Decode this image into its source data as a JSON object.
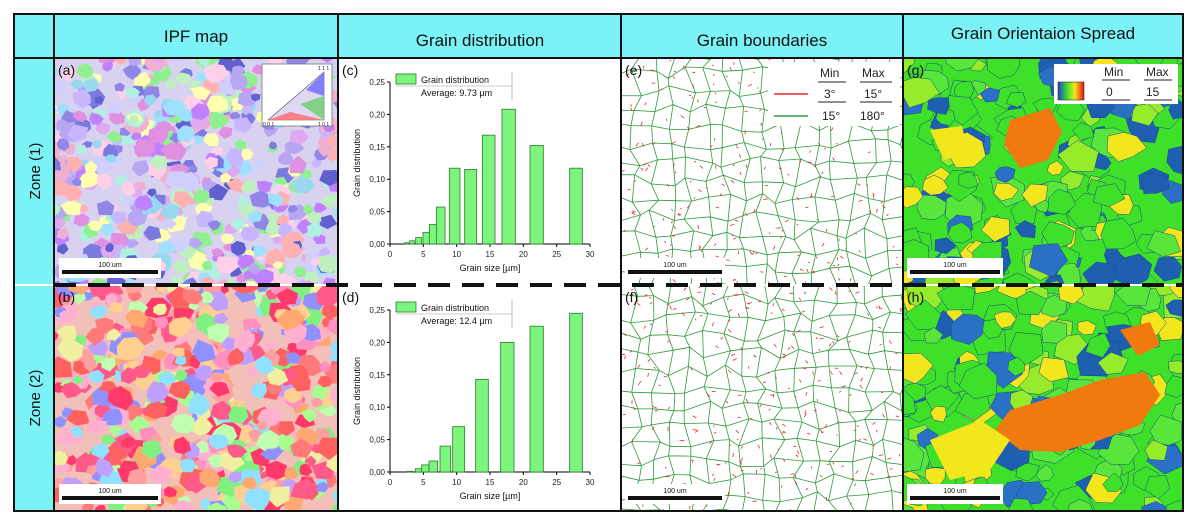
{
  "headers": {
    "ipf": "IPF map",
    "grain_distribution": "Grain distribution",
    "grain_boundaries": "Grain boundaries",
    "gos": "Grain Orientaion Spread"
  },
  "zones": [
    "Zone (1)",
    "Zone (2)"
  ],
  "panel_labels": [
    "(a)",
    "(b)",
    "(c)",
    "(d)",
    "(e)",
    "(f)",
    "(g)",
    "(h)"
  ],
  "scale_bar": "100 um",
  "ipf_key": {
    "top": "1 1 1",
    "left": "0 0 1",
    "right": "1 0 1"
  },
  "boundary_legend": {
    "min_header": "Min",
    "max_header": "Max",
    "rows": [
      {
        "min": "3°",
        "max": "15°",
        "color": "#e8262a"
      },
      {
        "min": "15°",
        "max": "180°",
        "color": "#2e9a3a"
      }
    ]
  },
  "gos_legend": {
    "min_header": "Min",
    "max_header": "Max",
    "min": "0",
    "max": "15"
  },
  "colors": {
    "header_bg": "#7af2f6",
    "bar_fill": "#7cf57c",
    "bar_stroke": "#2d7a2d",
    "gos_blue": "#1f5fb0",
    "gos_green": "#3ee02a",
    "gos_yellow": "#f2e61c",
    "gos_orange": "#f07a10"
  },
  "chart_data": [
    {
      "type": "bar",
      "panel": "(c)",
      "legend_label": "Grain distribution",
      "average": "Average: 9.73 µm",
      "xlabel": "Grain size [µm]",
      "ylabel": "Grain distribution",
      "xlim": [
        0,
        30
      ],
      "ylim": [
        0,
        0.25
      ],
      "xticks": [
        "0",
        "5",
        "10",
        "15",
        "20",
        "25",
        "30"
      ],
      "yticks": [
        "0,00",
        "0,05",
        "0,10",
        "0,15",
        "0,20",
        "0,25"
      ],
      "x": [
        2.5,
        3.3,
        4.3,
        5.5,
        6.5,
        7.6,
        9.7,
        12.1,
        14.8,
        17.8,
        22.0,
        27.9
      ],
      "widths": [
        0.6,
        0.7,
        0.9,
        1.1,
        1.2,
        1.3,
        1.6,
        1.8,
        1.9,
        2.0,
        2.0,
        1.9
      ],
      "values": [
        0.002,
        0.005,
        0.01,
        0.018,
        0.03,
        0.057,
        0.117,
        0.115,
        0.168,
        0.208,
        0.152,
        0.117
      ]
    },
    {
      "type": "bar",
      "panel": "(d)",
      "legend_label": "Grain distribution",
      "average": "Average: 12.4 µm",
      "xlabel": "Grain size [µm]",
      "ylabel": "Grain distribution",
      "xlim": [
        0,
        30
      ],
      "ylim": [
        0,
        0.25
      ],
      "xticks": [
        "0",
        "5",
        "10",
        "15",
        "20",
        "25",
        "30"
      ],
      "yticks": [
        "0,00",
        "0,05",
        "0,10",
        "0,15",
        "0,20",
        "0,25"
      ],
      "x": [
        3.0,
        4.3,
        5.3,
        6.5,
        8.3,
        10.3,
        13.8,
        17.6,
        22.0,
        27.9
      ],
      "widths": [
        0.8,
        1.0,
        1.1,
        1.3,
        1.6,
        1.8,
        1.9,
        2.0,
        2.0,
        1.9
      ],
      "values": [
        0.001,
        0.005,
        0.011,
        0.017,
        0.04,
        0.07,
        0.143,
        0.2,
        0.225,
        0.245
      ]
    }
  ]
}
